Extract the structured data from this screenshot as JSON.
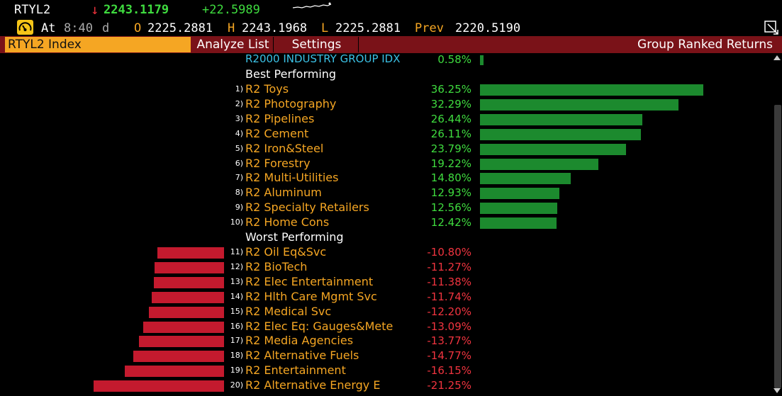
{
  "header": {
    "ticker": "RTYL2",
    "direction_arrow": "↓",
    "last_price": "2243.1179",
    "net_change": "+22.5989",
    "time_label": "At",
    "time_value": "8:40",
    "time_suffix": "d",
    "open_label": "O",
    "open_value": "2225.2881",
    "high_label": "H",
    "high_value": "2243.1968",
    "low_label": "L",
    "low_value": "2225.2881",
    "prev_label": "Prev",
    "prev_value": "2220.5190"
  },
  "command_bar": {
    "security": "RTYL2 Index",
    "analyze_label": "Analyze List",
    "settings_label": "Settings",
    "title": "Group Ranked Returns"
  },
  "benchmark": {
    "name": "R2000 INDUSTRY GROUP IDX",
    "return": "0.58%",
    "value": 0.58
  },
  "best_heading": "Best Performing",
  "worst_heading": "Worst Performing",
  "best": [
    {
      "rank": "1)",
      "name": "R2 Toys",
      "return": "36.25%",
      "value": 36.25
    },
    {
      "rank": "2)",
      "name": "R2 Photography",
      "return": "32.29%",
      "value": 32.29
    },
    {
      "rank": "3)",
      "name": "R2 Pipelines",
      "return": "26.44%",
      "value": 26.44
    },
    {
      "rank": "4)",
      "name": "R2 Cement",
      "return": "26.11%",
      "value": 26.11
    },
    {
      "rank": "5)",
      "name": "R2 Iron&Steel",
      "return": "23.79%",
      "value": 23.79
    },
    {
      "rank": "6)",
      "name": "R2 Forestry",
      "return": "19.22%",
      "value": 19.22
    },
    {
      "rank": "7)",
      "name": "R2 Multi-Utilities",
      "return": "14.80%",
      "value": 14.8
    },
    {
      "rank": "8)",
      "name": "R2 Aluminum",
      "return": "12.93%",
      "value": 12.93
    },
    {
      "rank": "9)",
      "name": "R2 Specialty Retailers",
      "return": "12.56%",
      "value": 12.56
    },
    {
      "rank": "10)",
      "name": "R2 Home Cons",
      "return": "12.42%",
      "value": 12.42
    }
  ],
  "worst": [
    {
      "rank": "11)",
      "name": "R2 Oil Eq&Svc",
      "return": "-10.80%",
      "value": -10.8
    },
    {
      "rank": "12)",
      "name": "R2 BioTech",
      "return": "-11.27%",
      "value": -11.27
    },
    {
      "rank": "13)",
      "name": "R2 Elec Entertainment",
      "return": "-11.38%",
      "value": -11.38
    },
    {
      "rank": "14)",
      "name": "R2 Hlth Care Mgmt Svc",
      "return": "-11.74%",
      "value": -11.74
    },
    {
      "rank": "15)",
      "name": "R2 Medical Svc",
      "return": "-12.20%",
      "value": -12.2
    },
    {
      "rank": "16)",
      "name": "R2 Elec Eq: Gauges&Mete",
      "return": "-13.09%",
      "value": -13.09
    },
    {
      "rank": "17)",
      "name": "R2 Media Agencies",
      "return": "-13.77%",
      "value": -13.77
    },
    {
      "rank": "18)",
      "name": "R2 Alternative Fuels",
      "return": "-14.77%",
      "value": -14.77
    },
    {
      "rank": "19)",
      "name": "R2 Entertainment",
      "return": "-16.15%",
      "value": -16.15
    },
    {
      "rank": "20)",
      "name": "R2 Alternative Energy E",
      "return": "-21.25%",
      "value": -21.25
    }
  ],
  "colors": {
    "positive": "#3fdc3f",
    "negative": "#f0343f",
    "bar_positive": "#1c8a2e",
    "bar_negative": "#c41a2e",
    "amber": "#f5a623",
    "command_bar": "#7a1218",
    "benchmark": "#3bc1e5"
  },
  "icons": {
    "status": "speedometer-icon",
    "expand": "expand-window-icon",
    "sparkline": "sparkline-icon"
  }
}
